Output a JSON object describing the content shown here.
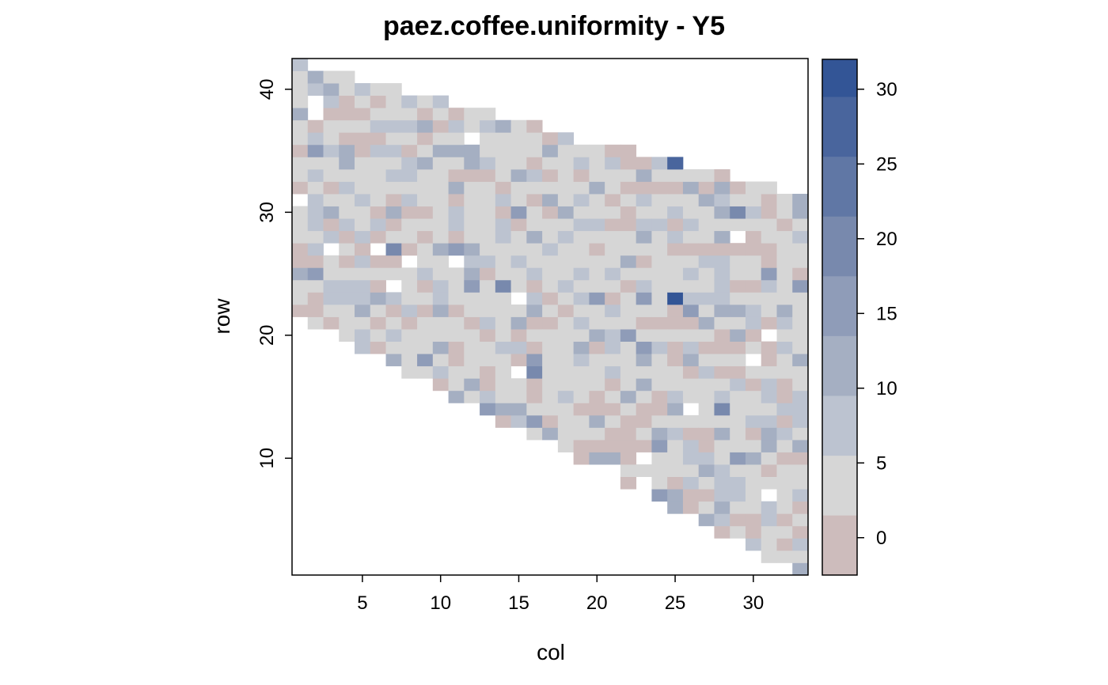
{
  "chart_data": {
    "type": "heatmap",
    "title": "paez.coffee.uniformity - Y5",
    "xlabel": "col",
    "ylabel": "row",
    "xlim": [
      0.5,
      33.5
    ],
    "ylim": [
      0.5,
      42.5
    ],
    "x_ticks": [
      5,
      10,
      15,
      20,
      25,
      30
    ],
    "y_ticks": [
      10,
      20,
      30,
      40
    ],
    "colorbar": {
      "range": [
        -2.5,
        32
      ],
      "ticks": [
        0,
        5,
        10,
        15,
        20,
        25,
        30
      ],
      "levels": [
        {
          "from": -2.5,
          "to": 1.5,
          "color": "#cdbcbc"
        },
        {
          "from": 1.5,
          "to": 5.5,
          "color": "#d6d6d6"
        },
        {
          "from": 5.5,
          "to": 9.5,
          "color": "#bcc3d0"
        },
        {
          "from": 9.5,
          "to": 13.5,
          "color": "#a5afc2"
        },
        {
          "from": 13.5,
          "to": 17.5,
          "color": "#8f9cb8"
        },
        {
          "from": 17.5,
          "to": 21.5,
          "color": "#7889ad"
        },
        {
          "from": 21.5,
          "to": 25.5,
          "color": "#6077a5"
        },
        {
          "from": 25.5,
          "to": 29.5,
          "color": "#49659d"
        },
        {
          "from": 29.5,
          "to": 32,
          "color": "#335596"
        }
      ]
    },
    "cell_values": "approximate per-cell yield values over a triangular field (row 42 at col 1 down to row 1 at col 33); most cells in the 2-9 range, a few negative, two peaks near (col 25, row 23) and (col 25, row 34)"
  }
}
